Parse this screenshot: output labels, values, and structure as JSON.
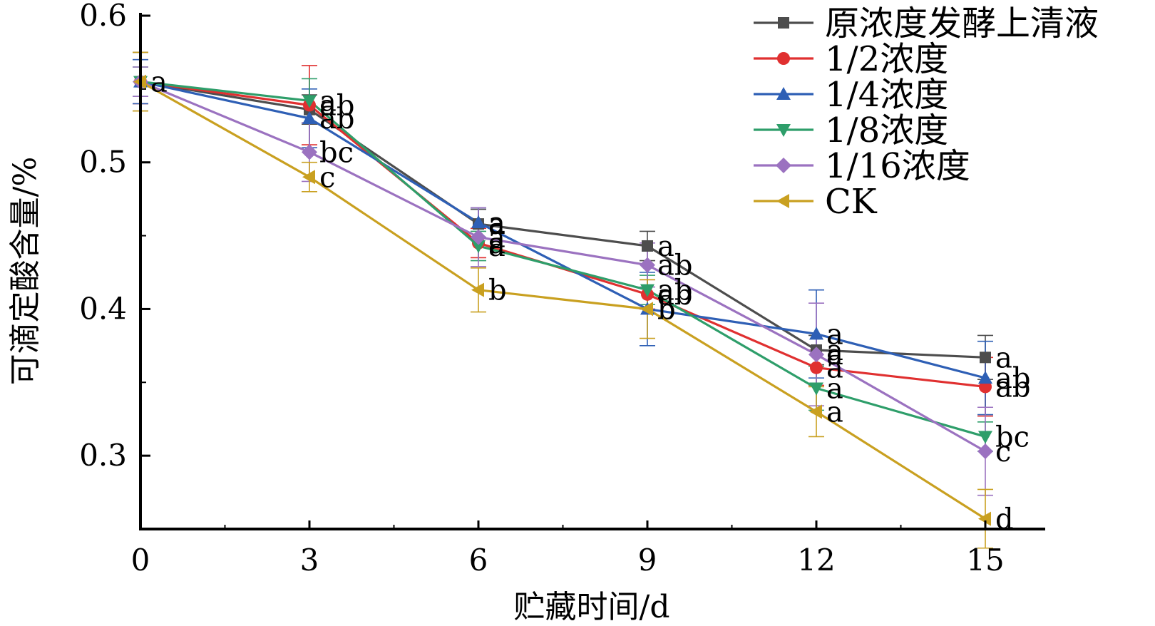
{
  "chart_data": {
    "type": "line",
    "title": "",
    "xlabel": "贮藏时间/d",
    "ylabel": "可滴定酸含量/%",
    "x": [
      0,
      3,
      6,
      9,
      12,
      15
    ],
    "xticks": [
      "0",
      "3",
      "6",
      "9",
      "12",
      "15"
    ],
    "yticks": [
      "0.3",
      "0.4",
      "0.5",
      "0.6"
    ],
    "xlim": [
      0,
      16
    ],
    "ylim": [
      0.25,
      0.6
    ],
    "grid": false,
    "legend_position": "top-right",
    "series": [
      {
        "name": "原浓度发酵上清液",
        "color": "#4d4d4d",
        "marker": "square",
        "values": [
          0.555,
          0.536,
          0.458,
          0.443,
          0.372,
          0.367
        ],
        "errors": [
          0.02,
          0.01,
          0.01,
          0.01,
          0.01,
          0.015
        ],
        "labels": [
          "",
          "",
          "a",
          "a",
          "a",
          "a"
        ]
      },
      {
        "name": "1/2浓度",
        "color": "#e03030",
        "marker": "circle",
        "values": [
          0.555,
          0.539,
          0.445,
          0.41,
          0.36,
          0.347
        ],
        "errors": [
          0.015,
          0.027,
          0.01,
          0.01,
          0.012,
          0.02
        ],
        "labels": [
          "",
          "ab",
          "a",
          "ab",
          "a",
          "ab"
        ]
      },
      {
        "name": "1/4浓度",
        "color": "#2e5fb5",
        "marker": "triangle-up",
        "values": [
          0.555,
          0.53,
          0.459,
          0.4,
          0.383,
          0.353
        ],
        "errors": [
          0.015,
          0.02,
          0.01,
          0.025,
          0.03,
          0.025
        ],
        "labels": [
          "",
          "ab",
          "a",
          "b",
          "a",
          "ab"
        ]
      },
      {
        "name": "1/8浓度",
        "color": "#2e9e6a",
        "marker": "triangle-down",
        "values": [
          0.555,
          0.542,
          0.443,
          0.413,
          0.346,
          0.313
        ],
        "errors": [
          0.01,
          0.015,
          0.01,
          0.01,
          0.015,
          0.01
        ],
        "labels": [
          "",
          "a",
          "a",
          "ab",
          "a",
          "bc"
        ]
      },
      {
        "name": "1/16浓度",
        "color": "#9b72c0",
        "marker": "diamond",
        "values": [
          0.555,
          0.507,
          0.449,
          0.43,
          0.369,
          0.303
        ],
        "errors": [
          0.01,
          0.02,
          0.02,
          0.015,
          0.035,
          0.03
        ],
        "labels": [
          "",
          "bc",
          "a",
          "ab",
          "a",
          "c"
        ]
      },
      {
        "name": "CK",
        "color": "#c9a020",
        "marker": "triangle-left",
        "values": [
          0.555,
          0.49,
          0.413,
          0.4,
          0.33,
          0.257
        ],
        "errors": [
          0.02,
          0.01,
          0.015,
          0.02,
          0.017,
          0.02
        ],
        "labels": [
          "a",
          "c",
          "b",
          "b",
          "a",
          "d"
        ]
      }
    ]
  }
}
